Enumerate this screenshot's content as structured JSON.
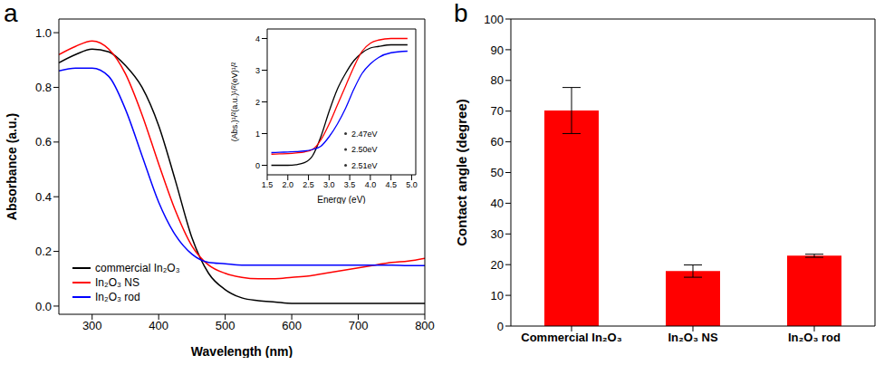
{
  "chart_data": [
    {
      "panel": "a",
      "type": "line",
      "x_label": "Wavelength (nm)",
      "y_label": "Absorbance (a.u.)",
      "x": [
        250,
        275,
        300,
        325,
        350,
        375,
        400,
        425,
        450,
        475,
        500,
        525,
        550,
        575,
        600,
        625,
        650,
        675,
        700,
        725,
        750,
        775,
        800
      ],
      "xlim": [
        250,
        800
      ],
      "xticks": [
        300,
        400,
        500,
        600,
        700,
        800
      ],
      "ylim": [
        -0.03,
        1.05
      ],
      "yticks": [
        {
          "value": 0,
          "label": "0.0"
        },
        0.2,
        0.4,
        0.6,
        0.8,
        {
          "value": 1,
          "label": "1.0"
        }
      ],
      "legend": "lower left",
      "series": [
        {
          "name": "commercial In₂O₃",
          "color": "#000000",
          "values": [
            0.89,
            0.92,
            0.94,
            0.93,
            0.88,
            0.8,
            0.66,
            0.46,
            0.25,
            0.12,
            0.06,
            0.03,
            0.02,
            0.015,
            0.01,
            0.01,
            0.01,
            0.01,
            0.01,
            0.01,
            0.01,
            0.01,
            0.01
          ]
        },
        {
          "name": "In₂O₃ NS",
          "color": "#ff0000",
          "values": [
            0.92,
            0.95,
            0.97,
            0.94,
            0.85,
            0.7,
            0.52,
            0.35,
            0.22,
            0.15,
            0.12,
            0.105,
            0.1,
            0.1,
            0.105,
            0.11,
            0.12,
            0.13,
            0.14,
            0.15,
            0.16,
            0.165,
            0.175
          ]
        },
        {
          "name": "In₂O₃ rod",
          "color": "#0000ff",
          "values": [
            0.86,
            0.87,
            0.87,
            0.84,
            0.72,
            0.55,
            0.38,
            0.26,
            0.19,
            0.16,
            0.155,
            0.15,
            0.15,
            0.15,
            0.15,
            0.15,
            0.15,
            0.15,
            0.15,
            0.15,
            0.15,
            0.148,
            0.148
          ]
        }
      ],
      "inset": {
        "type": "line",
        "x_label": "Energy (eV)",
        "y_label": "(Abs.)¹/²(a.u.)¹/²(eV)¹/²",
        "x": [
          1.6,
          1.8,
          2.0,
          2.2,
          2.4,
          2.6,
          2.8,
          3.0,
          3.2,
          3.4,
          3.6,
          3.8,
          4.0,
          4.2,
          4.5,
          4.9
        ],
        "xlim": [
          1.5,
          5.1
        ],
        "xticks": [
          1.5,
          {
            "value": 2,
            "label": "2.0"
          },
          2.5,
          {
            "value": 3,
            "label": "3.0"
          },
          3.5,
          {
            "value": 4,
            "label": "4.0"
          },
          4.5,
          {
            "value": 5,
            "label": "5.0"
          }
        ],
        "ylim": [
          -0.3,
          4.3
        ],
        "yticks": [
          0,
          1,
          2,
          3,
          4
        ],
        "annotations": [
          "2.47eV",
          "2.50eV",
          "2.51eV"
        ],
        "series": [
          {
            "color": "#000000",
            "values": [
              0,
              0,
              0,
              0.02,
              0.08,
              0.3,
              0.9,
              1.7,
              2.4,
              2.9,
              3.3,
              3.55,
              3.7,
              3.75,
              3.8,
              3.8
            ]
          },
          {
            "color": "#ff0000",
            "values": [
              0.35,
              0.36,
              0.37,
              0.39,
              0.42,
              0.5,
              0.8,
              1.3,
              1.9,
              2.5,
              3.1,
              3.6,
              3.85,
              3.95,
              4.0,
              4.0
            ]
          },
          {
            "color": "#0000ff",
            "values": [
              0.4,
              0.41,
              0.42,
              0.43,
              0.45,
              0.5,
              0.6,
              0.9,
              1.3,
              1.8,
              2.4,
              2.9,
              3.2,
              3.4,
              3.55,
              3.6
            ]
          }
        ]
      }
    },
    {
      "panel": "b",
      "type": "bar",
      "y_label": "Contact angle (degree)",
      "categories": [
        "Commercial In₂O₃",
        "In₂O₃ NS",
        "In₂O₃ rod"
      ],
      "values": [
        70.2,
        17.9,
        22.9
      ],
      "errors": [
        7.5,
        2.0,
        0.5
      ],
      "color": "#ff0000",
      "ylim": [
        0,
        100
      ],
      "yticks": [
        0,
        10,
        20,
        30,
        40,
        50,
        60,
        70,
        80,
        90,
        100
      ]
    }
  ]
}
